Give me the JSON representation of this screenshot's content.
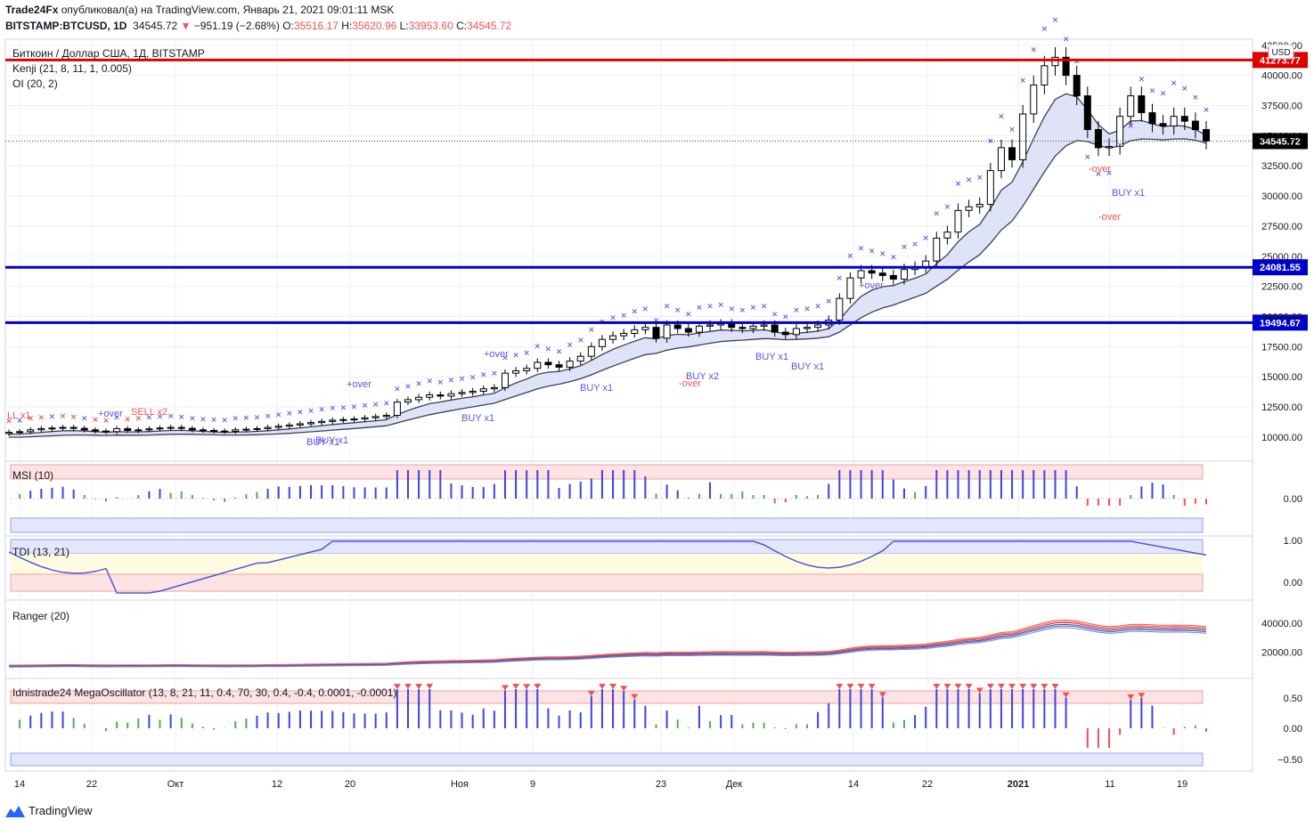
{
  "header": {
    "line1_author": "Trade24Fx",
    "line1_rest": "опубликовал(а) на TradingView.com, Январь 21, 2021 09:01:11 MSK",
    "symbol": "BITSTAMP:BTCUSD, 1D",
    "price": "34545.72",
    "change_arrow": "▼",
    "change": "−951.19 (−2.68%)",
    "o_label": "O:",
    "o": "35516.17",
    "h_label": "H:",
    "h": "35620.96",
    "l_label": "L:",
    "l": "33953.60",
    "c_label": "C:",
    "c": "34545.72"
  },
  "legend": {
    "main_title": "Биткоин / Доллар США, 1Д, BITSTAMP",
    "kenji": "Kenji (21, 8, 11, 1, 0.005)",
    "oi": "OI (20, 2)"
  },
  "chart_data": {
    "type": "candlestick",
    "title": "Биткоин / Доллар США, 1Д, BITSTAMP",
    "currency_badge": "USD",
    "ylim": [
      8000,
      43000
    ],
    "yticks": [
      "10000.00",
      "12500.00",
      "15000.00",
      "17500.00",
      "20000.00",
      "22500.00",
      "25000.00",
      "27500.00",
      "30000.00",
      "32500.00",
      "35000.00",
      "37500.00",
      "40000.00",
      "42500.00"
    ],
    "xticks": [
      "14",
      "22",
      "Окт",
      "12",
      "20",
      "Ноя",
      "9",
      "23",
      "Дек",
      "14",
      "22",
      "2021",
      "11",
      "19"
    ],
    "horizontal_lines": [
      {
        "value": 41273.77,
        "label": "41273.77",
        "color": "#e00000"
      },
      {
        "value": 24081.55,
        "label": "24081.55",
        "color": "#0000cc"
      },
      {
        "value": 19494.67,
        "label": "19494.67",
        "color": "#0000cc"
      }
    ],
    "last_price": {
      "value": 34545.72,
      "label": "34545.72"
    },
    "closes": [
      10400,
      10450,
      10600,
      10700,
      10750,
      10800,
      10720,
      10600,
      10500,
      10450,
      10700,
      10550,
      10600,
      10680,
      10750,
      10800,
      10720,
      10600,
      10550,
      10500,
      10480,
      10600,
      10650,
      10700,
      10800,
      10900,
      11000,
      11100,
      11200,
      11300,
      11400,
      11450,
      11500,
      11600,
      11700,
      11800,
      12900,
      13100,
      13300,
      13500,
      13400,
      13600,
      13700,
      13800,
      14000,
      14100,
      15300,
      15500,
      15700,
      16200,
      16000,
      15800,
      16300,
      16700,
      17500,
      18100,
      18400,
      18600,
      18900,
      19100,
      18200,
      19300,
      19000,
      18700,
      19200,
      19300,
      19400,
      19100,
      19000,
      19200,
      19300,
      18700,
      18500,
      19000,
      19100,
      19300,
      19700,
      21500,
      23200,
      23800,
      23600,
      23400,
      23100,
      23900,
      24100,
      24600,
      26500,
      27000,
      28800,
      29100,
      29300,
      32100,
      34000,
      33000,
      36800,
      39200,
      40800,
      41500,
      40000,
      38300,
      35500,
      34000,
      34100,
      36600,
      38300,
      36900,
      36000,
      35800,
      36600,
      36200,
      35500,
      34545
    ],
    "tdi_levels": [
      "1.00",
      "0.00"
    ],
    "msi_levels": [
      "0.00"
    ],
    "ranger_levels": [
      "40000.00",
      "20000.00"
    ],
    "oscillator_levels": [
      "0.50",
      "0.00",
      "−0.50"
    ]
  },
  "annotations": {
    "sell_left": "LL x1",
    "over1": "+over",
    "sell_x2": "SELL x2",
    "buy_x1_a": "BUY x1",
    "buy_x1_b": "BUY x1",
    "over2": "+over",
    "buy_x1_c": "BUY x1",
    "over3": "+over",
    "buy_x1_d": "BUY x1",
    "buy_x2": "BUY x2",
    "over_neg1": "-over",
    "buy_x1_e": "BUY x1",
    "buy_x1_f": "BUY x1",
    "over4": "+over",
    "over_neg2": "-over",
    "buy_x1_g": "BUY x1",
    "over_neg3": "-over"
  },
  "panels": {
    "msi": "MSI (10)",
    "tdi": "TDI (13, 21)",
    "ranger": "Ranger (20)",
    "mega": "Idnistrade24 MegaOscillator (13, 8, 21, 11, 0.4, 70, 30, 0.4, -0.4, 0.0001, -0.0001)"
  },
  "footer": {
    "brand": "TradingView"
  },
  "colors": {
    "up": "#ffffff",
    "down": "#000000",
    "grid": "#eceff4",
    "red_line": "#e00000",
    "blue_line": "#0000cc",
    "band_fill": "#d7dcf5",
    "green_fill": "#d9f2d6",
    "cross": "#6b5cf0",
    "msi_bar": "#3b44e8"
  }
}
